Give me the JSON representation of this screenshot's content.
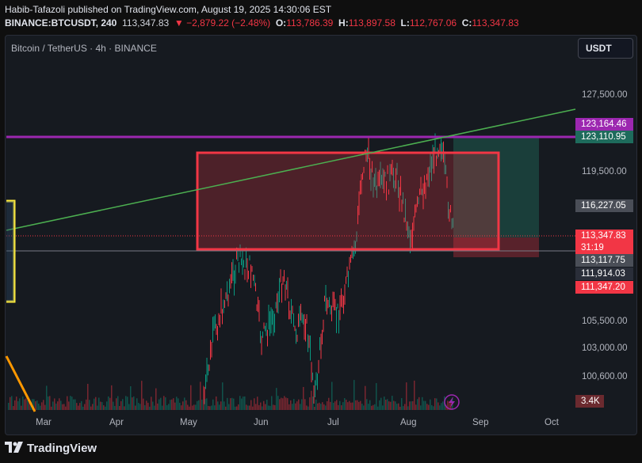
{
  "header": {
    "publisher_line": "Habib-Tafazoli published on TradingView.com, August 19, 2025 14:30:06 EST",
    "symbol": "BINANCE:BTCUSDT, 240",
    "price": "113,347.83",
    "change": "▼ −2,879.22 (−2.48%)",
    "open_label": "O:",
    "open": "113,786.39",
    "high_label": "H:",
    "high": "113,897.58",
    "low_label": "L:",
    "low": "112,767.06",
    "close_label": "C:",
    "close": "113,347.83"
  },
  "chart": {
    "title": "Bitcoin / TetherUS · 4h · BINANCE",
    "currency_button": "USDT",
    "price_ticks": [
      "127,500.00",
      "119,500.00",
      "105,500.00",
      "103,000.00",
      "100,600.00"
    ],
    "price_tags": [
      {
        "text": "123,164.46",
        "color": "#9c27b0"
      },
      {
        "text": "123,110.95",
        "color": "#1e6b5c"
      },
      {
        "text": "116,227.05",
        "color": "#4a4e57"
      },
      {
        "text": "113,347.83",
        "color": "#f23645"
      },
      {
        "text": "31:19",
        "color": "#f23645"
      },
      {
        "text": "113,117.75",
        "color": "#4a4e57"
      },
      {
        "text": "111,914.03",
        "color": "#2a2e39"
      },
      {
        "text": "111,347.20",
        "color": "#f23645"
      },
      {
        "text": "3.4K",
        "color": "#6b2a2f"
      }
    ],
    "months": [
      "Mar",
      "Apr",
      "May",
      "Jun",
      "Jul",
      "Aug",
      "Sep",
      "Oct"
    ],
    "colors": {
      "up": "#089981",
      "down": "#f23645",
      "trendline": "#4caf50",
      "resistance": "#9c27b0",
      "box": "#f23645",
      "bracket": "#ffeb3b",
      "orange": "#ff9800"
    }
  },
  "footer": {
    "brand": "TradingView"
  }
}
